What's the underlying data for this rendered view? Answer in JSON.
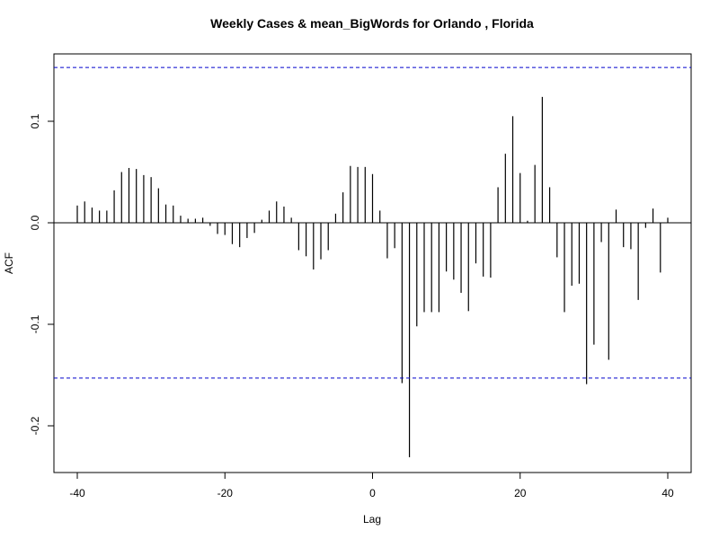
{
  "chart_data": {
    "type": "bar",
    "title": "Weekly Cases & mean_BigWords for Orlando , Florida",
    "xlabel": "Lag",
    "ylabel": "ACF",
    "xlim": [
      -40.5,
      40.5
    ],
    "ylim": [
      -0.24,
      0.17
    ],
    "x_ticks": [
      -40,
      -20,
      0,
      20,
      40
    ],
    "x_tick_labels": [
      "-40",
      "-20",
      "0",
      "20",
      "40"
    ],
    "y_ticks": [
      -0.2,
      -0.1,
      0.0,
      0.1
    ],
    "y_tick_labels": [
      "-0.2",
      "-0.1",
      "0.0",
      "0.1"
    ],
    "confidence_limits": [
      0.153,
      -0.153
    ],
    "confidence_color": "#0000cc",
    "grid": false,
    "lags": [
      -40,
      -39,
      -38,
      -37,
      -36,
      -35,
      -34,
      -33,
      -32,
      -31,
      -30,
      -29,
      -28,
      -27,
      -26,
      -25,
      -24,
      -23,
      -22,
      -21,
      -20,
      -19,
      -18,
      -17,
      -16,
      -15,
      -14,
      -13,
      -12,
      -11,
      -10,
      -9,
      -8,
      -7,
      -6,
      -5,
      -4,
      -3,
      -2,
      -1,
      0,
      1,
      2,
      3,
      4,
      5,
      6,
      7,
      8,
      9,
      10,
      11,
      12,
      13,
      14,
      15,
      16,
      17,
      18,
      19,
      20,
      21,
      22,
      23,
      24,
      25,
      26,
      27,
      28,
      29,
      30,
      31,
      32,
      33,
      34,
      35,
      36,
      37,
      38,
      39,
      40
    ],
    "acf": [
      0.017,
      0.021,
      0.015,
      0.012,
      0.012,
      0.032,
      0.05,
      0.054,
      0.053,
      0.047,
      0.045,
      0.034,
      0.018,
      0.017,
      0.007,
      0.004,
      0.004,
      0.005,
      -0.003,
      -0.011,
      -0.012,
      -0.021,
      -0.024,
      -0.015,
      -0.01,
      0.003,
      0.012,
      0.021,
      0.016,
      0.005,
      -0.027,
      -0.033,
      -0.046,
      -0.036,
      -0.027,
      0.009,
      0.03,
      0.056,
      0.055,
      0.055,
      0.048,
      0.012,
      -0.035,
      -0.025,
      -0.158,
      -0.231,
      -0.102,
      -0.088,
      -0.088,
      -0.088,
      -0.048,
      -0.056,
      -0.069,
      -0.087,
      -0.04,
      -0.053,
      -0.054,
      0.035,
      0.068,
      0.105,
      0.049,
      0.002,
      0.057,
      0.124,
      0.035,
      -0.034,
      -0.088,
      -0.062,
      -0.06,
      -0.159,
      -0.12,
      -0.019,
      -0.135,
      0.013,
      -0.024,
      -0.026,
      -0.076,
      -0.005,
      0.014,
      -0.049,
      0.005
    ]
  }
}
